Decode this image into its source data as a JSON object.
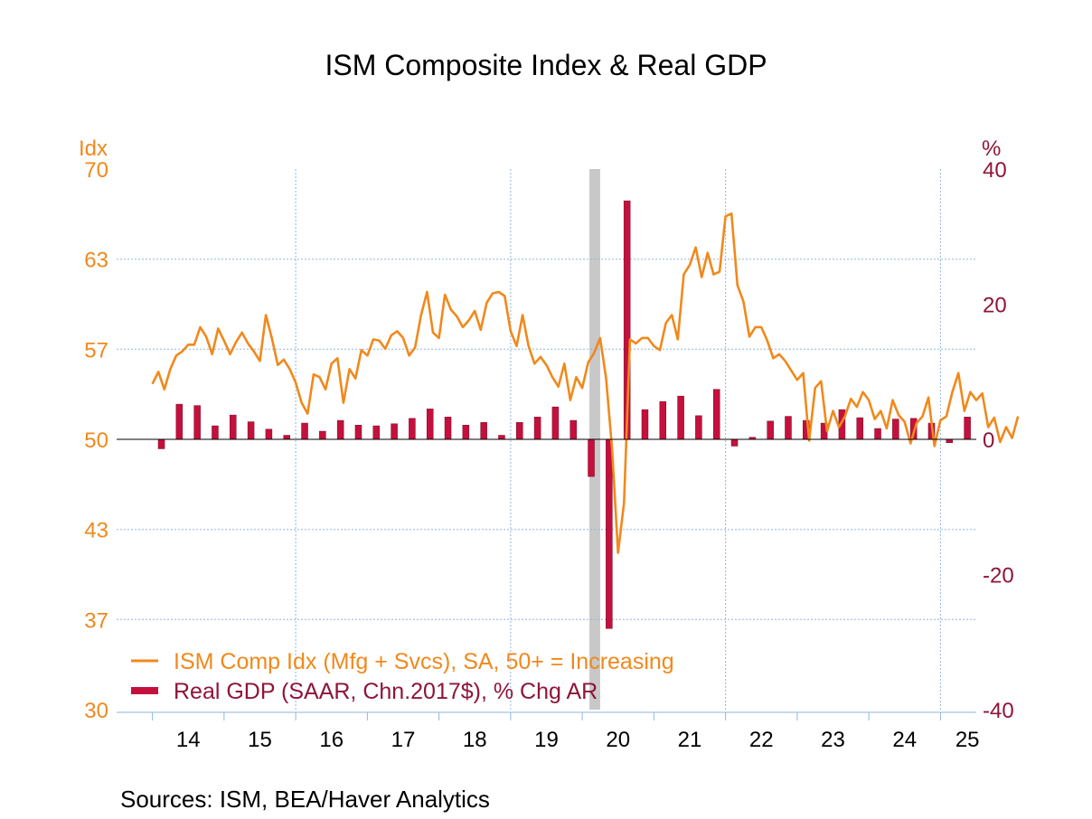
{
  "chart_data": {
    "type": "bar+line",
    "title": "ISM Composite Index & Real GDP",
    "left_axis": {
      "label": "Idx",
      "ylim": [
        30,
        70
      ],
      "ticks": [
        "70",
        "63",
        "57",
        "50",
        "43",
        "37",
        "30"
      ],
      "tick_values": [
        70,
        63.33,
        56.67,
        50,
        43.33,
        36.67,
        30
      ]
    },
    "right_axis": {
      "label": "%",
      "ylim": [
        -40,
        40
      ],
      "ticks": [
        "40",
        "20",
        "0",
        "-20",
        "-40"
      ],
      "tick_values": [
        40,
        20,
        0,
        -20,
        -40
      ]
    },
    "x_axis": {
      "range": [
        2013.5,
        2025.5
      ],
      "tick_labels": [
        "14",
        "15",
        "16",
        "17",
        "18",
        "19",
        "20",
        "21",
        "22",
        "23",
        "24",
        "25"
      ],
      "tick_centers": [
        2014.5,
        2015.5,
        2016.5,
        2017.5,
        2018.5,
        2019.5,
        2020.5,
        2021.5,
        2022.5,
        2023.5,
        2024.5,
        2025.5
      ]
    },
    "recession": {
      "start": 2020.1,
      "end": 2020.25
    },
    "grid": true,
    "legend_position": "bottom-left",
    "colors": {
      "ism": "#f0891c",
      "gdp": "#c4103c",
      "left_axis": "#f0891c",
      "right_axis": "#8e1538",
      "recession": "#c8c8c8"
    },
    "series": [
      {
        "name": "ISM Comp Idx (Mfg + Svcs), SA, 50+ = Increasing",
        "type": "line",
        "axis": "left",
        "start": 2014.0,
        "step": 0.08333,
        "values": [
          54.1,
          55.0,
          53.7,
          55.2,
          56.2,
          56.5,
          57.0,
          57.0,
          58.3,
          57.6,
          56.3,
          58.2,
          57.3,
          56.3,
          57.2,
          57.9,
          57.1,
          56.5,
          55.8,
          59.2,
          57.5,
          55.5,
          55.9,
          55.2,
          54.2,
          52.7,
          51.9,
          54.8,
          54.6,
          53.7,
          55.6,
          56.0,
          52.7,
          55.2,
          54.5,
          56.6,
          56.2,
          57.4,
          57.3,
          56.7,
          57.7,
          58.0,
          57.5,
          56.2,
          56.8,
          59.2,
          60.9,
          57.9,
          57.5,
          60.7,
          59.6,
          59.1,
          58.3,
          58.8,
          59.5,
          58.1,
          60.1,
          60.8,
          60.9,
          60.6,
          58.0,
          56.9,
          59.2,
          56.9,
          55.6,
          56.1,
          55.5,
          54.6,
          53.9,
          55.6,
          52.9,
          54.6,
          53.8,
          55.7,
          56.4,
          57.5,
          54.5,
          49.3,
          41.6,
          45.3,
          57.4,
          57.1,
          57.5,
          57.5,
          56.9,
          56.6,
          58.6,
          59.2,
          57.4,
          62.2,
          62.9,
          64.2,
          62.0,
          63.8,
          62.2,
          62.4,
          66.5,
          66.7,
          61.4,
          60.2,
          57.6,
          58.3,
          58.3,
          57.3,
          56.0,
          56.3,
          55.8,
          55.1,
          54.4,
          54.9,
          49.9,
          53.8,
          54.3,
          50.6,
          52.1,
          50.9,
          51.7,
          53.0,
          52.4,
          53.5,
          52.9,
          51.5,
          52.1,
          50.8,
          52.9,
          51.8,
          51.3,
          49.7,
          51.2,
          51.7,
          53.1,
          49.5,
          51.4,
          51.7,
          53.5,
          54.9,
          52.1,
          53.5,
          52.9,
          53.4,
          50.9,
          51.6,
          49.8,
          50.9,
          50.1,
          51.7
        ]
      },
      {
        "name": "Real GDP (SAAR, Chn.2017$), % Chg AR",
        "type": "bar",
        "axis": "right",
        "quarters": [
          "2014Q1",
          "2014Q2",
          "2014Q3",
          "2014Q4",
          "2015Q1",
          "2015Q2",
          "2015Q3",
          "2015Q4",
          "2016Q1",
          "2016Q2",
          "2016Q3",
          "2016Q4",
          "2017Q1",
          "2017Q2",
          "2017Q3",
          "2017Q4",
          "2018Q1",
          "2018Q2",
          "2018Q3",
          "2018Q4",
          "2019Q1",
          "2019Q2",
          "2019Q3",
          "2019Q4",
          "2020Q1",
          "2020Q2",
          "2020Q3",
          "2020Q4",
          "2021Q1",
          "2021Q2",
          "2021Q3",
          "2021Q4",
          "2022Q1",
          "2022Q2",
          "2022Q3",
          "2022Q4",
          "2023Q1",
          "2023Q2",
          "2023Q3",
          "2023Q4",
          "2024Q1",
          "2024Q2",
          "2024Q3",
          "2024Q4",
          "2025Q1",
          "2025Q2"
        ],
        "values": [
          -1.4,
          5.2,
          5.0,
          2.0,
          3.6,
          2.6,
          1.5,
          0.6,
          2.4,
          1.2,
          2.8,
          2.1,
          2.0,
          2.3,
          3.1,
          4.5,
          3.3,
          2.1,
          2.5,
          0.6,
          2.5,
          3.3,
          4.8,
          2.8,
          -5.5,
          -28.0,
          35.3,
          4.4,
          5.6,
          6.4,
          3.5,
          7.4,
          -1.0,
          0.3,
          2.7,
          3.4,
          2.8,
          2.4,
          4.4,
          3.2,
          1.6,
          3.0,
          3.1,
          2.4,
          -0.5,
          3.3
        ]
      }
    ],
    "sources": "Sources:   ISM, BEA/Haver Analytics"
  }
}
